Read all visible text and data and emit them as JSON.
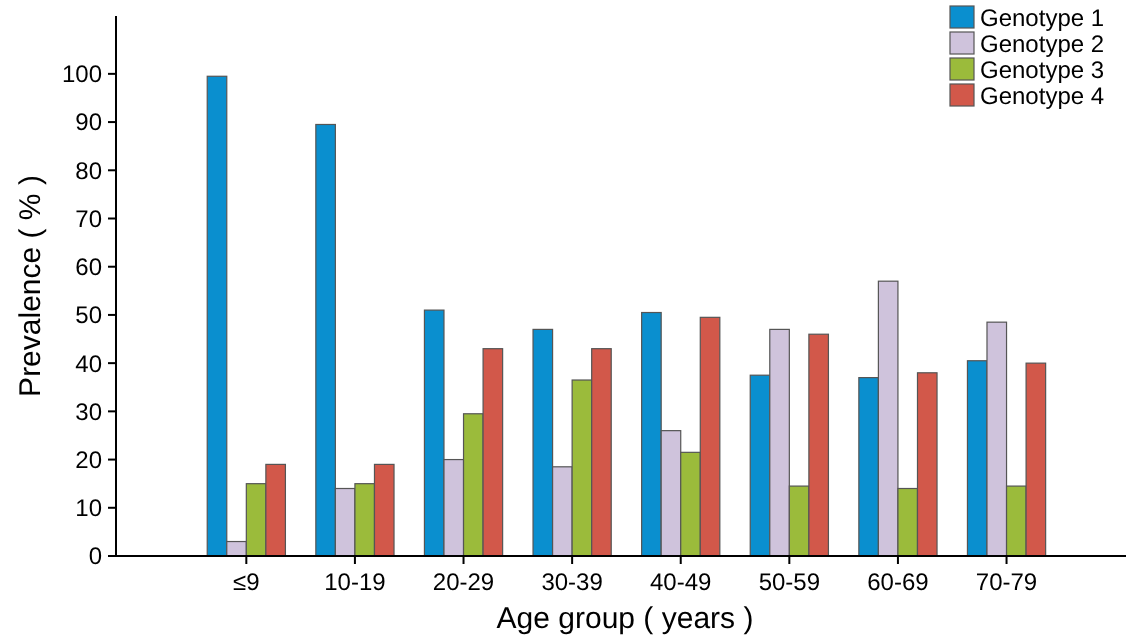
{
  "chart_data": {
    "type": "bar",
    "xlabel": "Age group ( years )",
    "ylabel": "Prevalence ( % )",
    "categories": [
      "≤9",
      "10-19",
      "20-29",
      "30-39",
      "40-49",
      "50-59",
      "60-69",
      "70-79"
    ],
    "series": [
      {
        "name": "Genotype 1",
        "color": "#0a8fcf",
        "values": [
          99.5,
          89.5,
          51,
          47,
          50.5,
          37.5,
          37,
          40.5
        ]
      },
      {
        "name": "Genotype 2",
        "color": "#cfc3dc",
        "values": [
          3,
          14,
          20,
          18.5,
          26,
          47,
          57,
          48.5
        ]
      },
      {
        "name": "Genotype 3",
        "color": "#9bbb3b",
        "values": [
          15,
          15,
          29.5,
          36.5,
          21.5,
          14.5,
          14,
          14.5
        ]
      },
      {
        "name": "Genotype 4",
        "color": "#d2584a",
        "values": [
          19,
          19,
          43,
          43,
          49.5,
          46,
          38,
          40
        ]
      }
    ],
    "ylim": [
      0,
      112
    ],
    "yticks": [
      0,
      10,
      20,
      30,
      40,
      50,
      60,
      70,
      80,
      90,
      100
    ],
    "grid": false,
    "legend": "top right"
  }
}
